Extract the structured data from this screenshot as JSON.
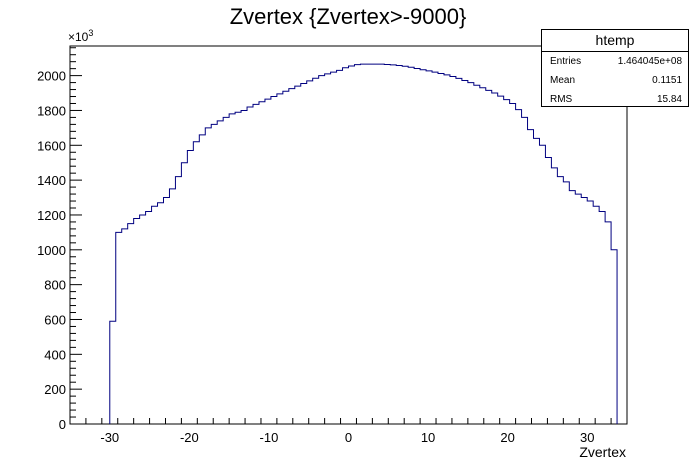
{
  "chart_data": {
    "type": "histogram",
    "title": "Zvertex {Zvertex>-9000}",
    "xlabel": "Zvertex",
    "ylabel": "",
    "y_multiplier_base": "×10",
    "y_multiplier_exp": "3",
    "xlim": [
      -35,
      35
    ],
    "ylim": [
      0,
      2170
    ],
    "x_ticks": [
      -30,
      -20,
      -10,
      0,
      10,
      20,
      30
    ],
    "x_tick_labels": [
      "-30",
      "-20",
      "-10",
      "0",
      "10",
      "20",
      "30"
    ],
    "y_ticks": [
      0,
      200,
      400,
      600,
      800,
      1000,
      1200,
      1400,
      1600,
      1800,
      2000
    ],
    "y_tick_labels": [
      "0",
      "200",
      "400",
      "600",
      "800",
      "1000",
      "1200",
      "1400",
      "1600",
      "1800",
      "2000"
    ],
    "bin_width": 0.75,
    "bin_start": -30,
    "y_unit": "thousands",
    "values": [
      590,
      1100,
      1120,
      1150,
      1180,
      1200,
      1220,
      1250,
      1270,
      1300,
      1350,
      1420,
      1500,
      1570,
      1620,
      1660,
      1700,
      1720,
      1740,
      1760,
      1780,
      1790,
      1800,
      1820,
      1835,
      1850,
      1865,
      1880,
      1895,
      1910,
      1925,
      1940,
      1955,
      1970,
      1985,
      2000,
      2010,
      2020,
      2030,
      2045,
      2055,
      2063,
      2066,
      2066,
      2066,
      2066,
      2064,
      2062,
      2058,
      2054,
      2048,
      2041,
      2034,
      2027,
      2020,
      2012,
      2004,
      1995,
      1984,
      1972,
      1960,
      1945,
      1930,
      1915,
      1900,
      1882,
      1862,
      1840,
      1805,
      1760,
      1690,
      1640,
      1600,
      1530,
      1470,
      1420,
      1390,
      1340,
      1320,
      1300,
      1280,
      1250,
      1220,
      1160,
      1000
    ]
  },
  "stats_box": {
    "name": "htemp",
    "entries_label": "Entries",
    "entries_value": "1.464045e+08",
    "mean_label": "Mean",
    "mean_value": "0.1151",
    "rms_label": "RMS",
    "rms_value": "15.84"
  },
  "colors": {
    "histogram_line": "#000080",
    "axes": "#000000",
    "background": "#ffffff"
  }
}
